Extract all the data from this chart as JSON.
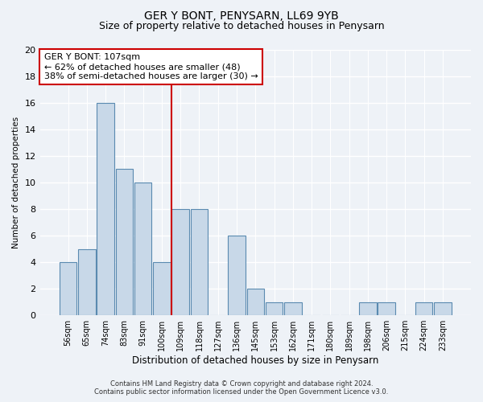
{
  "title": "GER Y BONT, PENYSARN, LL69 9YB",
  "subtitle": "Size of property relative to detached houses in Penysarn",
  "xlabel": "Distribution of detached houses by size in Penysarn",
  "ylabel": "Number of detached properties",
  "bar_labels": [
    "56sqm",
    "65sqm",
    "74sqm",
    "83sqm",
    "91sqm",
    "100sqm",
    "109sqm",
    "118sqm",
    "127sqm",
    "136sqm",
    "145sqm",
    "153sqm",
    "162sqm",
    "171sqm",
    "180sqm",
    "189sqm",
    "198sqm",
    "206sqm",
    "215sqm",
    "224sqm",
    "233sqm"
  ],
  "bar_values": [
    4,
    5,
    16,
    11,
    10,
    4,
    8,
    8,
    0,
    6,
    2,
    1,
    1,
    0,
    0,
    0,
    1,
    1,
    0,
    1,
    1
  ],
  "bar_color": "#c8d8e8",
  "bar_edge_color": "#5a8ab0",
  "vline_x_index": 6,
  "vline_color": "#cc0000",
  "annotation_line1": "GER Y BONT: 107sqm",
  "annotation_line2": "← 62% of detached houses are smaller (48)",
  "annotation_line3": "38% of semi-detached houses are larger (30) →",
  "annotation_box_color": "#cc0000",
  "ylim": [
    0,
    20
  ],
  "yticks": [
    0,
    2,
    4,
    6,
    8,
    10,
    12,
    14,
    16,
    18,
    20
  ],
  "background_color": "#eef2f7",
  "plot_bg_color": "#eef2f7",
  "grid_color": "#ffffff",
  "footer_line1": "Contains HM Land Registry data © Crown copyright and database right 2024.",
  "footer_line2": "Contains public sector information licensed under the Open Government Licence v3.0.",
  "title_fontsize": 10,
  "subtitle_fontsize": 9,
  "xlabel_fontsize": 8.5,
  "ylabel_fontsize": 7.5,
  "tick_fontsize": 7,
  "annot_fontsize": 8
}
